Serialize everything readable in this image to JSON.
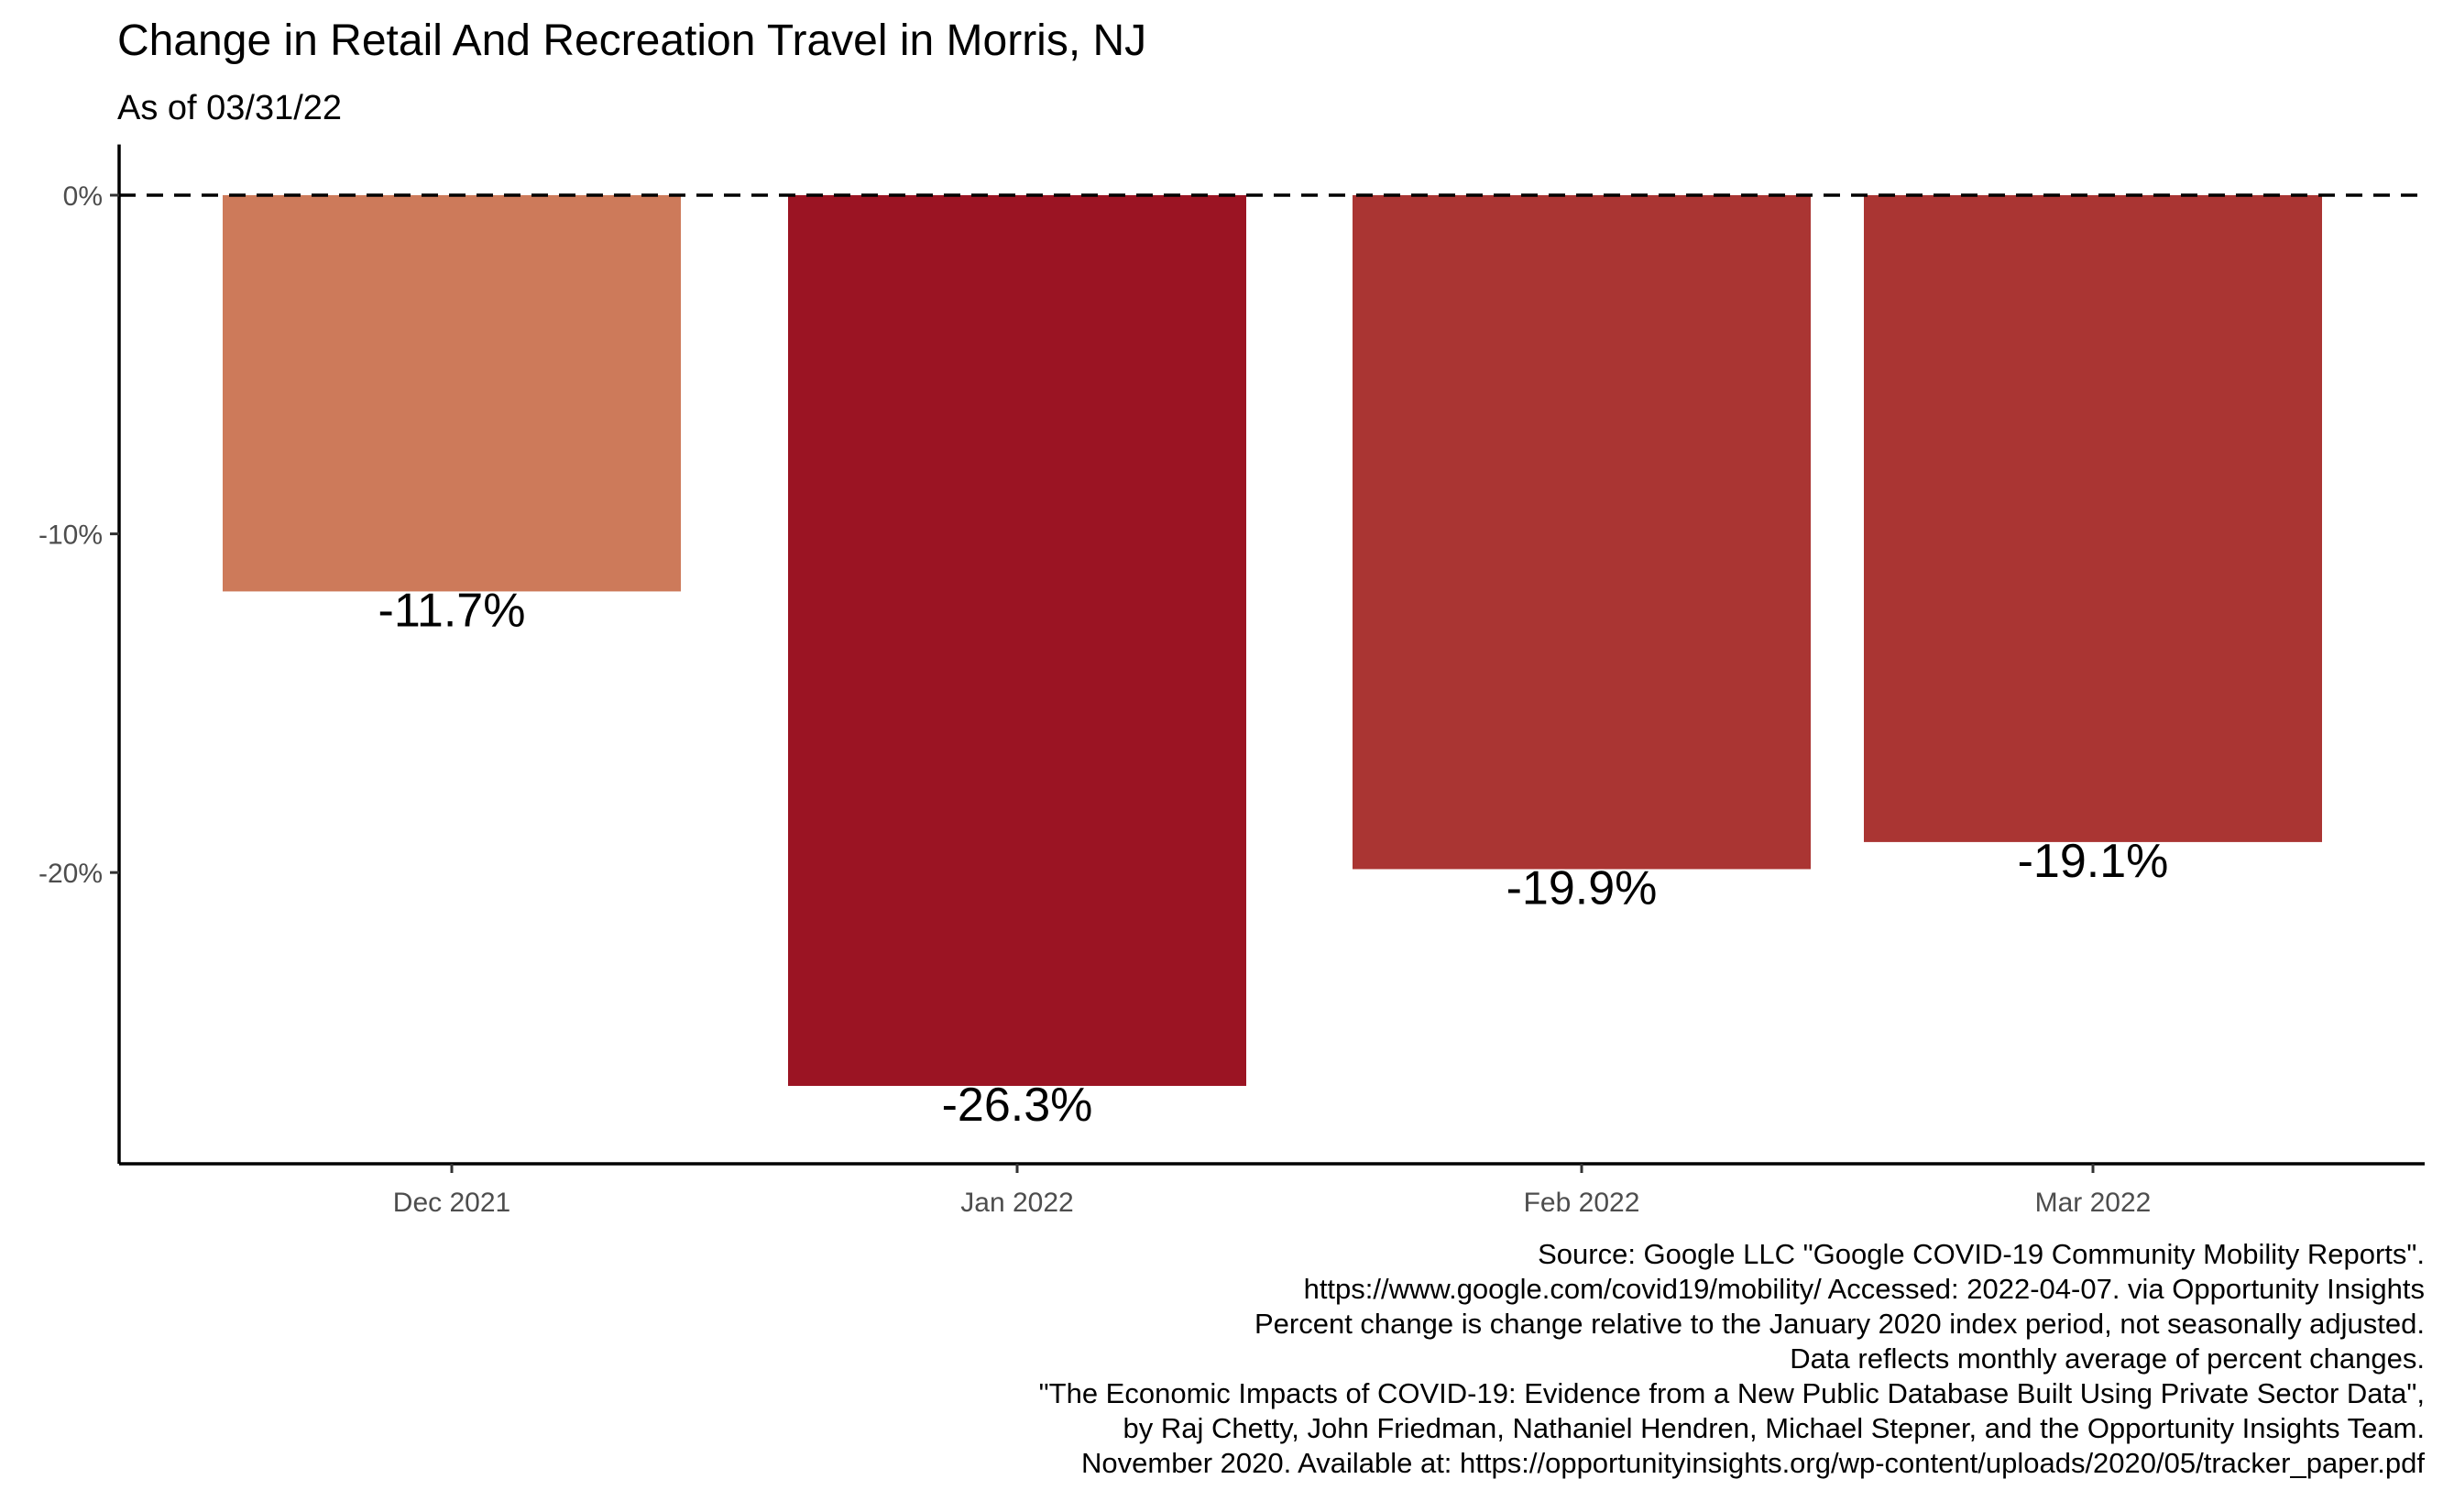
{
  "chart_data": {
    "type": "bar",
    "title": "Change in Retail And Recreation Travel in Morris, NJ",
    "subtitle": "As of 03/31/22",
    "categories": [
      "Dec 2021",
      "Jan 2022",
      "Feb 2022",
      "Mar 2022"
    ],
    "values": [
      -11.7,
      -26.3,
      -19.9,
      -19.1
    ],
    "value_labels": [
      "-11.7%",
      "-26.3%",
      "-19.9%",
      "-19.1%"
    ],
    "bar_colors": [
      "#cd7a5a",
      "#9b1423",
      "#aa3533",
      "#aa3533"
    ],
    "xlabel": "",
    "ylabel": "",
    "ylim": [
      -28.6,
      1.5
    ],
    "y_ticks": [
      0,
      -10,
      -20
    ],
    "y_tick_labels": [
      "0%",
      "-10%",
      "-20%"
    ],
    "reference_line": {
      "value": 0,
      "style": "dashed"
    },
    "grid": false,
    "legend": "none",
    "caption": [
      "Source: Google LLC \"Google COVID-19 Community Mobility Reports\".",
      "https://www.google.com/covid19/mobility/ Accessed: 2022-04-07. via Opportunity Insights",
      "Percent change is change relative to the January 2020 index period, not seasonally adjusted.",
      "Data reflects monthly average of percent changes.",
      "\"The Economic Impacts of COVID-19: Evidence from a New Public Database Built Using Private Sector Data\",",
      "by Raj Chetty, John Friedman, Nathaniel Hendren, Michael Stepner, and the Opportunity Insights Team.",
      "November 2020. Available at: https://opportunityinsights.org/wp-content/uploads/2020/05/tracker_paper.pdf"
    ]
  }
}
